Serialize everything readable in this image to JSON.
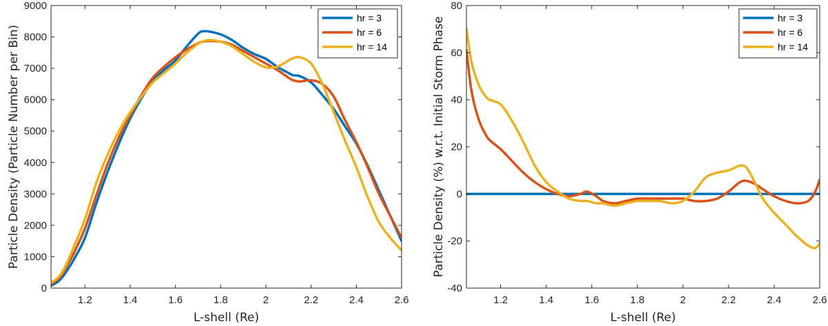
{
  "chart_data": [
    {
      "type": "line",
      "title": "",
      "xlabel": "L-shell (Re)",
      "ylabel": "Particle Density (Particle Number per Bin)",
      "xlim": [
        1.05,
        2.6
      ],
      "ylim": [
        0,
        9000
      ],
      "xticks": [
        "1.2",
        "1.4",
        "1.6",
        "1.8",
        "2",
        "2.2",
        "2.4",
        "2.6"
      ],
      "yticks": [
        "0",
        "1000",
        "2000",
        "3000",
        "4000",
        "5000",
        "6000",
        "7000",
        "8000",
        "9000"
      ],
      "grid": false,
      "legend_position": "top-right",
      "x": [
        1.05,
        1.08,
        1.1,
        1.12,
        1.15,
        1.2,
        1.25,
        1.3,
        1.35,
        1.4,
        1.45,
        1.5,
        1.55,
        1.6,
        1.65,
        1.7,
        1.72,
        1.75,
        1.8,
        1.85,
        1.9,
        1.95,
        2.0,
        2.05,
        2.1,
        2.12,
        2.15,
        2.2,
        2.25,
        2.3,
        2.35,
        2.4,
        2.45,
        2.5,
        2.55,
        2.6
      ],
      "series": [
        {
          "name": "hr = 3",
          "color": "#0072BD",
          "values": [
            80,
            200,
            350,
            550,
            900,
            1600,
            2700,
            3700,
            4600,
            5400,
            6050,
            6600,
            6950,
            7250,
            7700,
            8100,
            8180,
            8170,
            8080,
            7900,
            7650,
            7450,
            7300,
            7050,
            6850,
            6780,
            6750,
            6550,
            6150,
            5700,
            5150,
            4600,
            3900,
            3100,
            2300,
            1500
          ]
        },
        {
          "name": "hr = 6",
          "color": "#D95319",
          "values": [
            130,
            280,
            450,
            700,
            1100,
            1900,
            2950,
            3950,
            4800,
            5500,
            6150,
            6700,
            7050,
            7350,
            7600,
            7800,
            7850,
            7870,
            7850,
            7750,
            7550,
            7350,
            7150,
            6950,
            6700,
            6620,
            6580,
            6620,
            6500,
            6100,
            5350,
            4650,
            3850,
            3000,
            2300,
            1600
          ]
        },
        {
          "name": "hr = 14",
          "color": "#EDB120",
          "values": [
            170,
            330,
            520,
            800,
            1300,
            2200,
            3350,
            4250,
            5000,
            5600,
            6100,
            6550,
            6850,
            7150,
            7500,
            7780,
            7850,
            7900,
            7850,
            7700,
            7450,
            7200,
            7030,
            7050,
            7250,
            7320,
            7350,
            7150,
            6500,
            5600,
            4700,
            3850,
            2900,
            2100,
            1600,
            1200
          ]
        }
      ]
    },
    {
      "type": "line",
      "title": "",
      "xlabel": "L-shell (Re)",
      "ylabel": "Particle Density (%) w.r.t. Initial Storm Phase",
      "xlim": [
        1.05,
        2.6
      ],
      "ylim": [
        -40,
        80
      ],
      "xticks": [
        "1.2",
        "1.4",
        "1.6",
        "1.8",
        "2",
        "2.2",
        "2.4",
        "2.6"
      ],
      "yticks": [
        "-40",
        "-20",
        "0",
        "20",
        "40",
        "60",
        "80"
      ],
      "grid": false,
      "legend_position": "top-right",
      "x": [
        1.05,
        1.07,
        1.09,
        1.11,
        1.13,
        1.15,
        1.2,
        1.25,
        1.3,
        1.35,
        1.4,
        1.45,
        1.5,
        1.55,
        1.58,
        1.62,
        1.65,
        1.7,
        1.75,
        1.8,
        1.85,
        1.9,
        1.95,
        2.0,
        2.05,
        2.1,
        2.15,
        2.2,
        2.25,
        2.28,
        2.32,
        2.35,
        2.4,
        2.45,
        2.5,
        2.55,
        2.58,
        2.6
      ],
      "series": [
        {
          "name": "hr = 3",
          "color": "#0072BD",
          "values": [
            0,
            0,
            0,
            0,
            0,
            0,
            0,
            0,
            0,
            0,
            0,
            0,
            0,
            0,
            0,
            0,
            0,
            0,
            0,
            0,
            0,
            0,
            0,
            0,
            0,
            0,
            0,
            0,
            0,
            0,
            0,
            0,
            0,
            0,
            0,
            0,
            0,
            0
          ]
        },
        {
          "name": "hr = 6",
          "color": "#D95319",
          "values": [
            61,
            45,
            36,
            30,
            26,
            23,
            19,
            14,
            9,
            5,
            2,
            0,
            -1,
            0,
            1,
            -1,
            -3,
            -4,
            -3,
            -2,
            -2,
            -2,
            -2,
            -2,
            -3,
            -3,
            -2,
            1,
            5,
            5.5,
            4,
            2,
            -1,
            -3,
            -4,
            -3,
            1,
            6
          ]
        },
        {
          "name": "hr = 14",
          "color": "#EDB120",
          "values": [
            70,
            57,
            50,
            45,
            42,
            40,
            38,
            31,
            22,
            12,
            5,
            1,
            -2,
            -3,
            -3,
            -4,
            -4,
            -5,
            -4,
            -3,
            -3,
            -3,
            -4,
            -3,
            1,
            7,
            9,
            10,
            12,
            11,
            4,
            -2,
            -8,
            -13,
            -18,
            -22,
            -23,
            -21
          ]
        }
      ]
    }
  ]
}
